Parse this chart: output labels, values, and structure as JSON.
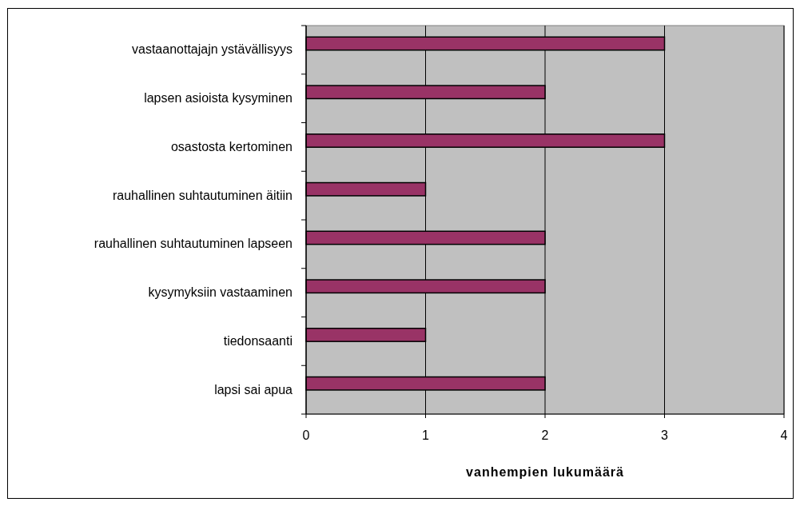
{
  "chart_data": {
    "type": "bar",
    "orientation": "horizontal",
    "xlabel": "vanhempien lukumäärä",
    "categories": [
      "vastaanottajajn ystävällisyys",
      "lapsen asioista kysyminen",
      "osastosta kertominen",
      "rauhallinen suhtautuminen äitiin",
      "rauhallinen suhtautuminen lapseen",
      "kysymyksiin vastaaminen",
      "tiedonsaanti",
      "lapsi sai apua"
    ],
    "values": [
      3,
      2,
      3,
      1,
      2,
      2,
      1,
      2
    ],
    "color": "#993366",
    "xlim": [
      0,
      4
    ],
    "xticks": [
      0,
      1,
      2,
      3,
      4
    ],
    "grid": "x"
  }
}
